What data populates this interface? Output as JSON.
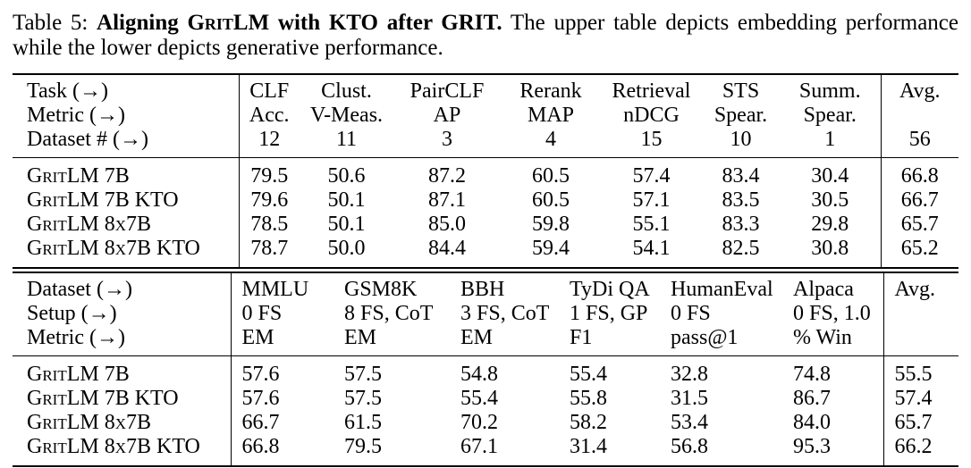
{
  "caption": {
    "label": "Table 5:",
    "title_pre": "Aligning",
    "title_model": "GritLM",
    "title_post": "with KTO after GRIT.",
    "text_line1": "The upper table depicts embedding performance",
    "text_line2": "while the lower depicts generative performance."
  },
  "upper_table": {
    "header_rows": [
      {
        "label": "Task (→)",
        "cells": [
          "CLF",
          "Clust.",
          "PairCLF",
          "Rerank",
          "Retrieval",
          "STS",
          "Summ.",
          "Avg."
        ]
      },
      {
        "label": "Metric (→)",
        "cells": [
          "Acc.",
          "V-Meas.",
          "AP",
          "MAP",
          "nDCG",
          "Spear.",
          "Spear.",
          ""
        ]
      },
      {
        "label": "Dataset # (→)",
        "cells": [
          "12",
          "11",
          "3",
          "4",
          "15",
          "10",
          "1",
          "56"
        ]
      }
    ],
    "rows": [
      {
        "label": "GritLM 7B",
        "values": [
          "79.5",
          "50.6",
          "87.2",
          "60.5",
          "57.4",
          "83.4",
          "30.4",
          "66.8"
        ]
      },
      {
        "label": "GritLM 7B KTO",
        "values": [
          "79.6",
          "50.1",
          "87.1",
          "60.5",
          "57.1",
          "83.5",
          "30.5",
          "66.7"
        ]
      },
      {
        "label": "GritLM 8x7B",
        "values": [
          "78.5",
          "50.1",
          "85.0",
          "59.8",
          "55.1",
          "83.3",
          "29.8",
          "65.7"
        ]
      },
      {
        "label": "GritLM 8x7B KTO",
        "values": [
          "78.7",
          "50.0",
          "84.4",
          "59.4",
          "54.1",
          "82.5",
          "30.8",
          "65.2"
        ]
      }
    ]
  },
  "lower_table": {
    "header_rows": [
      {
        "label": "Dataset (→)",
        "cells": [
          "MMLU",
          "GSM8K",
          "BBH",
          "TyDi QA",
          "HumanEval",
          "Alpaca",
          "Avg."
        ]
      },
      {
        "label": "Setup (→)",
        "cells": [
          "0 FS",
          "8 FS, CoT",
          "3 FS, CoT",
          "1 FS, GP",
          "0 FS",
          "0 FS, 1.0",
          ""
        ]
      },
      {
        "label": "Metric (→)",
        "cells": [
          "EM",
          "EM",
          "EM",
          "F1",
          "pass@1",
          "% Win",
          ""
        ]
      }
    ],
    "rows": [
      {
        "label": "GritLM 7B",
        "values": [
          "57.6",
          "57.5",
          "54.8",
          "55.4",
          "32.8",
          "74.8",
          "55.5"
        ]
      },
      {
        "label": "GritLM 7B KTO",
        "values": [
          "57.6",
          "57.5",
          "55.4",
          "55.8",
          "31.5",
          "86.7",
          "57.4"
        ]
      },
      {
        "label": "GritLM 8x7B",
        "values": [
          "66.7",
          "61.5",
          "70.2",
          "58.2",
          "53.4",
          "84.0",
          "65.7"
        ]
      },
      {
        "label": "GritLM 8x7B KTO",
        "values": [
          "66.8",
          "79.5",
          "67.1",
          "31.4",
          "56.8",
          "95.3",
          "66.2"
        ]
      }
    ]
  },
  "colors": {
    "text": "#000000",
    "background": "#ffffff",
    "rule": "#000000"
  }
}
